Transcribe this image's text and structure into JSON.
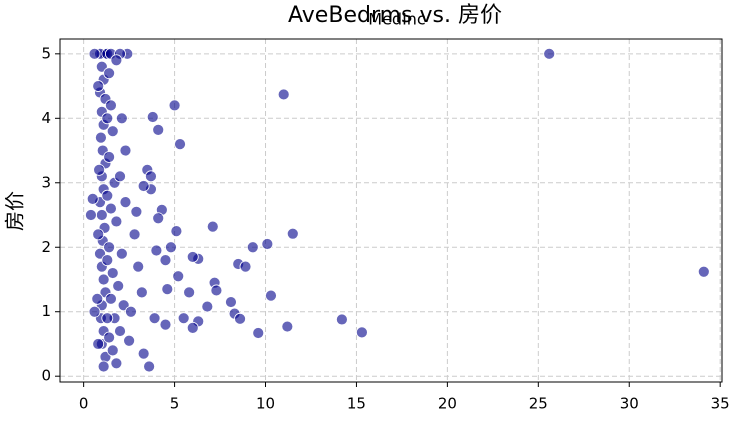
{
  "chart_data": {
    "type": "scatter",
    "title": "AveBedrms vs. 房价",
    "overlap_label": "MedInc",
    "y_label": "房价",
    "x": [
      1.0,
      1.1,
      1.2,
      0.9,
      1.3,
      0.6,
      1.5,
      1.0,
      1.1,
      0.9,
      1.2,
      1.0,
      1.1,
      0.95,
      1.05,
      1.2,
      1.0,
      1.1,
      0.9,
      1.0,
      1.15,
      1.05,
      0.9,
      1.0,
      1.1,
      1.2,
      1.0,
      0.95,
      1.1,
      1.0,
      1.2,
      1.1,
      1.4,
      1.5,
      1.6,
      1.4,
      1.7,
      1.5,
      1.8,
      1.4,
      1.6,
      1.9,
      1.5,
      1.7,
      1.4,
      1.6,
      1.8,
      0.8,
      0.85,
      0.8,
      0.75,
      0.8,
      1.3,
      1.3,
      1.3,
      1.3,
      2.0,
      2.1,
      2.2,
      2.0,
      2.3,
      2.1,
      25.6,
      34.1,
      11.0,
      5.0,
      5.3,
      3.8,
      4.1,
      14.2,
      15.3,
      11.2,
      9.6,
      10.3,
      11.5,
      10.1,
      9.3,
      7.1,
      8.5,
      8.9,
      8.1,
      8.3,
      8.6,
      7.2,
      7.3,
      6.8,
      6.3,
      6.0,
      5.1,
      4.8,
      4.3,
      4.1,
      3.7,
      3.5,
      3.7,
      2.4,
      2.0,
      1.8,
      2.3,
      3.3,
      6.3,
      5.5,
      5.8,
      6.0,
      3.6,
      3.3,
      4.5,
      4.0,
      5.2,
      4.6,
      3.9,
      4.5,
      2.8,
      3.0,
      2.6,
      2.5,
      2.9,
      3.2,
      0.5,
      0.4,
      0.6
    ],
    "values": [
      5.0,
      5.0,
      5.0,
      5.0,
      5.0,
      5.0,
      5.0,
      4.8,
      4.6,
      4.4,
      4.3,
      4.1,
      3.9,
      3.7,
      3.5,
      3.3,
      3.1,
      2.9,
      2.7,
      2.5,
      2.3,
      2.1,
      1.9,
      1.7,
      1.5,
      1.3,
      1.1,
      0.9,
      0.7,
      0.5,
      0.3,
      0.15,
      4.7,
      4.2,
      3.8,
      3.4,
      3.0,
      2.6,
      2.4,
      2.0,
      1.6,
      1.4,
      1.2,
      0.9,
      0.6,
      0.4,
      0.2,
      4.5,
      3.2,
      2.2,
      1.2,
      0.5,
      4.0,
      2.8,
      1.8,
      0.9,
      3.1,
      1.9,
      1.1,
      0.7,
      2.7,
      4.0,
      5.0,
      1.62,
      4.37,
      4.2,
      3.6,
      4.02,
      3.82,
      0.88,
      0.68,
      0.77,
      0.67,
      1.25,
      2.21,
      2.05,
      2.0,
      2.32,
      1.74,
      1.7,
      1.15,
      0.97,
      0.89,
      1.45,
      1.33,
      1.08,
      1.82,
      1.85,
      2.25,
      2.0,
      2.58,
      2.45,
      2.9,
      3.2,
      3.1,
      5.0,
      5.0,
      4.9,
      3.5,
      2.95,
      0.85,
      0.9,
      1.3,
      0.75,
      0.15,
      0.35,
      1.8,
      1.95,
      1.55,
      1.35,
      0.9,
      0.8,
      2.2,
      1.7,
      1.0,
      0.55,
      2.55,
      1.3,
      2.75,
      2.5,
      1.0
    ],
    "color": "#00008b",
    "xlim": [
      -1.3,
      35.1
    ],
    "ylim": [
      -0.09,
      5.23
    ],
    "xticks": [
      0,
      5,
      10,
      15,
      20,
      25,
      30,
      35
    ],
    "yticks": [
      0,
      1,
      2,
      3,
      4,
      5
    ],
    "grid": true
  }
}
